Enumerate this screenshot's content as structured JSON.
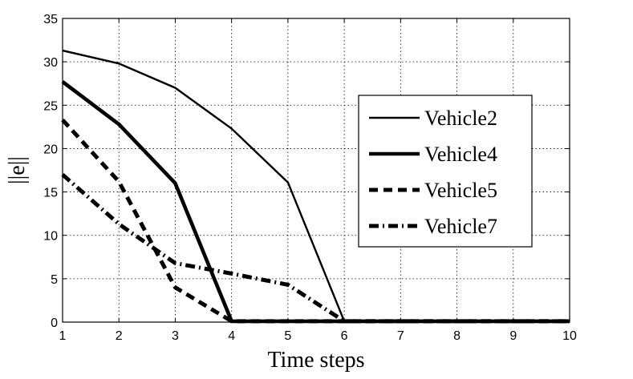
{
  "chart_data": {
    "type": "line",
    "xlabel": "Time steps",
    "ylabel": "||e||",
    "xlim": [
      1,
      10
    ],
    "ylim": [
      0,
      35
    ],
    "xticks": [
      1,
      2,
      3,
      4,
      5,
      6,
      7,
      8,
      9,
      10
    ],
    "yticks": [
      0,
      5,
      10,
      15,
      20,
      25,
      30,
      35
    ],
    "grid": true,
    "legend_position": "center-right",
    "x": [
      1,
      2,
      3,
      4,
      5,
      6,
      7,
      8,
      9,
      10
    ],
    "series": [
      {
        "name": "Vehicle2",
        "values": [
          31.3,
          29.8,
          27.0,
          22.3,
          16.1,
          0.1,
          0.1,
          0.1,
          0.1,
          0.1
        ],
        "color": "#000000",
        "style": "solid-thin"
      },
      {
        "name": "Vehicle4",
        "values": [
          27.7,
          22.8,
          16.0,
          0.1,
          0.1,
          0.1,
          0.1,
          0.1,
          0.1,
          0.1
        ],
        "color": "#000000",
        "style": "solid-thick"
      },
      {
        "name": "Vehicle5",
        "values": [
          23.3,
          16.2,
          4.0,
          0.1,
          0.1,
          0.1,
          0.1,
          0.1,
          0.1,
          0.1
        ],
        "color": "#000000",
        "style": "dashed-thick"
      },
      {
        "name": "Vehicle7",
        "values": [
          17.0,
          11.3,
          6.8,
          5.6,
          4.3,
          0.1,
          0.1,
          0.1,
          0.1,
          0.1
        ],
        "color": "#000000",
        "style": "dashdot-thick"
      }
    ]
  }
}
